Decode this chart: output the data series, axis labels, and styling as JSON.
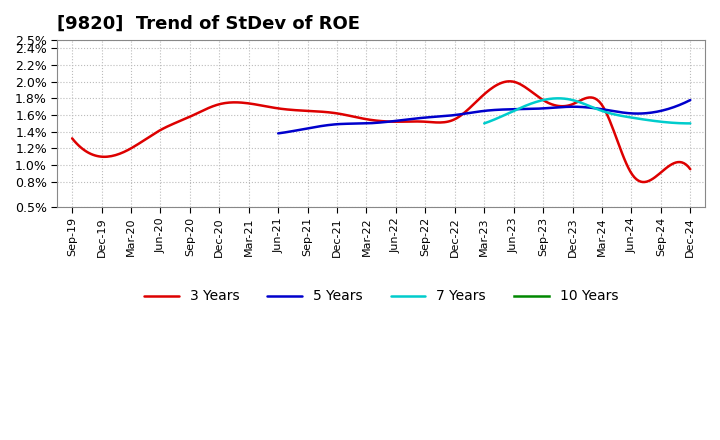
{
  "title": "[9820]  Trend of StDev of ROE",
  "ylim": [
    0.005,
    0.025
  ],
  "yticks": [
    0.005,
    0.008,
    0.01,
    0.012,
    0.014,
    0.016,
    0.018,
    0.02,
    0.022,
    0.024,
    0.025
  ],
  "ytick_labels": [
    "0.5%",
    "0.8%",
    "1.0%",
    "1.2%",
    "1.4%",
    "1.6%",
    "1.8%",
    "2.0%",
    "2.2%",
    "2.4%",
    "2.5%"
  ],
  "background_color": "#ffffff",
  "grid_color": "#aaaaaa",
  "x_labels": [
    "Sep-19",
    "Dec-19",
    "Mar-20",
    "Jun-20",
    "Sep-20",
    "Dec-20",
    "Mar-21",
    "Jun-21",
    "Sep-21",
    "Dec-21",
    "Mar-22",
    "Jun-22",
    "Sep-22",
    "Dec-22",
    "Mar-23",
    "Jun-23",
    "Sep-23",
    "Dec-23",
    "Mar-24",
    "Jun-24",
    "Sep-24",
    "Dec-24"
  ],
  "s3y": [
    1.32,
    1.1,
    1.2,
    1.42,
    1.58,
    1.73,
    1.74,
    1.68,
    1.65,
    1.62,
    1.55,
    1.52,
    1.52,
    1.55,
    1.85,
    2.0,
    1.78,
    1.73,
    1.72,
    0.9,
    0.91,
    0.95
  ],
  "s5y": [
    null,
    null,
    null,
    null,
    null,
    null,
    null,
    1.38,
    1.44,
    1.49,
    1.5,
    1.53,
    1.57,
    1.6,
    1.65,
    1.67,
    1.68,
    1.7,
    1.67,
    1.62,
    1.65,
    1.78
  ],
  "s7y": [
    null,
    null,
    null,
    null,
    null,
    null,
    null,
    null,
    null,
    null,
    null,
    null,
    null,
    null,
    1.5,
    1.65,
    1.78,
    1.78,
    1.65,
    1.57,
    1.52,
    1.5
  ],
  "s10y": [
    null,
    null,
    null,
    null,
    null,
    null,
    null,
    null,
    null,
    null,
    null,
    null,
    null,
    null,
    null,
    null,
    null,
    null,
    null,
    null,
    null,
    null
  ],
  "legend_labels": [
    "3 Years",
    "5 Years",
    "7 Years",
    "10 Years"
  ],
  "legend_colors": [
    "#dd0000",
    "#0000cc",
    "#00cccc",
    "#008800"
  ],
  "title_fontsize": 13,
  "tick_fontsize": 9,
  "xtick_fontsize": 8
}
